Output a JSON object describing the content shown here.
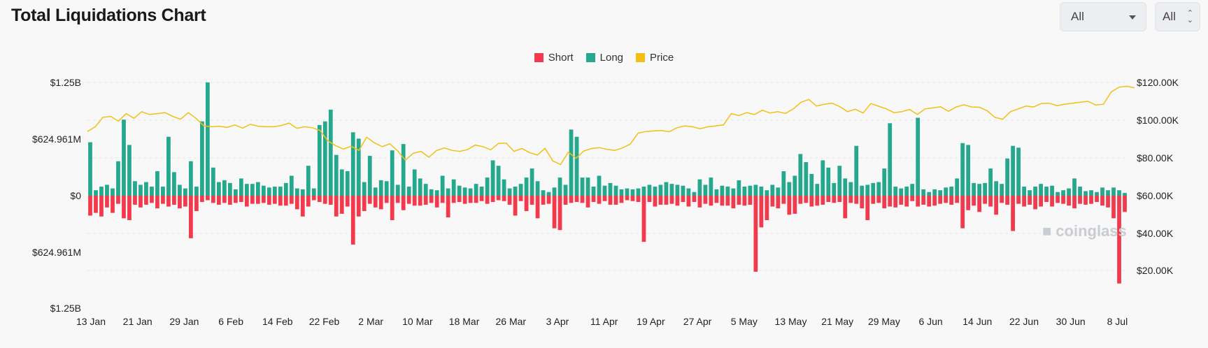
{
  "title": "Total Liquidations Chart",
  "controls": {
    "range_select": "All",
    "unit_select": "All"
  },
  "legend": [
    {
      "label": "Short",
      "color": "#f23a4c"
    },
    {
      "label": "Long",
      "color": "#26a88e"
    },
    {
      "label": "Price",
      "color": "#f2c014"
    }
  ],
  "watermark": "coinglass",
  "chart_data": {
    "type": "bar",
    "title": "Total Liquidations Chart",
    "x_tick_labels": [
      "13 Jan",
      "21 Jan",
      "29 Jan",
      "6 Feb",
      "14 Feb",
      "22 Feb",
      "2 Mar",
      "10 Mar",
      "18 Mar",
      "26 Mar",
      "3 Apr",
      "11 Apr",
      "19 Apr",
      "27 Apr",
      "5 May",
      "13 May",
      "21 May",
      "29 May",
      "6 Jun",
      "14 Jun",
      "22 Jun",
      "30 Jun",
      "8 Jul"
    ],
    "y_left_tick_labels": [
      "$1.25B",
      "$624.961M",
      "$0",
      "$624.961M",
      "$1.25B"
    ],
    "y_left_range": [
      -1.25,
      1.25
    ],
    "y_left_unit": "B USD",
    "y_right_tick_labels": [
      "$120.00K",
      "$100.00K",
      "$80.00K",
      "$60.00K",
      "$40.00K",
      "$20.00K"
    ],
    "y_right_range": [
      0,
      120000
    ],
    "grid": "horizontal dashed",
    "legend_position": "top-center",
    "series": [
      {
        "name": "Long",
        "color": "#26a88e",
        "values": [
          0.59,
          0.06,
          0.1,
          0.12,
          0.08,
          0.38,
          0.84,
          0.56,
          0.16,
          0.12,
          0.15,
          0.1,
          0.27,
          0.1,
          0.65,
          0.26,
          0.12,
          0.08,
          0.38,
          0.1,
          0.82,
          1.25,
          0.31,
          0.15,
          0.17,
          0.14,
          0.07,
          0.19,
          0.13,
          0.13,
          0.15,
          0.11,
          0.09,
          0.1,
          0.1,
          0.14,
          0.22,
          0.08,
          0.07,
          0.33,
          0.08,
          0.78,
          0.82,
          0.95,
          0.45,
          0.29,
          0.27,
          0.7,
          0.63,
          0.15,
          0.44,
          0.09,
          0.17,
          0.16,
          0.5,
          0.12,
          0.57,
          0.1,
          0.29,
          0.19,
          0.13,
          0.07,
          0.06,
          0.22,
          0.08,
          0.18,
          0.11,
          0.09,
          0.08,
          0.13,
          0.1,
          0.2,
          0.39,
          0.33,
          0.18,
          0.08,
          0.1,
          0.13,
          0.2,
          0.3,
          0.16,
          0.06,
          0.04,
          0.09,
          0.2,
          0.12,
          0.73,
          0.65,
          0.2,
          0.2,
          0.1,
          0.22,
          0.11,
          0.14,
          0.11,
          0.07,
          0.08,
          0.07,
          0.08,
          0.1,
          0.12,
          0.1,
          0.12,
          0.15,
          0.13,
          0.12,
          0.11,
          0.08,
          0.04,
          0.18,
          0.12,
          0.2,
          0.07,
          0.11,
          0.1,
          0.08,
          0.17,
          0.1,
          0.11,
          0.12,
          0.1,
          0.06,
          0.12,
          0.09,
          0.27,
          0.15,
          0.22,
          0.46,
          0.37,
          0.24,
          0.13,
          0.39,
          0.31,
          0.14,
          0.33,
          0.19,
          0.15,
          0.55,
          0.11,
          0.12,
          0.14,
          0.15,
          0.3,
          0.8,
          0.1,
          0.08,
          0.1,
          0.13,
          0.86,
          0.07,
          0.04,
          0.07,
          0.06,
          0.09,
          0.1,
          0.19,
          0.58,
          0.56,
          0.14,
          0.13,
          0.14,
          0.3,
          0.16,
          0.13,
          0.41,
          0.55,
          0.53,
          0.1,
          0.06,
          0.1,
          0.13,
          0.1,
          0.11,
          0.04,
          0.06,
          0.08,
          0.19,
          0.1,
          0.05,
          0.06,
          0.04,
          0.09,
          0.06,
          0.09,
          0.06,
          0.03
        ]
      },
      {
        "name": "Short",
        "color": "#f23a4c",
        "values": [
          -0.22,
          -0.19,
          -0.23,
          -0.13,
          -0.19,
          -0.09,
          -0.25,
          -0.27,
          -0.1,
          -0.13,
          -0.1,
          -0.08,
          -0.14,
          -0.09,
          -0.12,
          -0.1,
          -0.14,
          -0.12,
          -0.47,
          -0.17,
          -0.07,
          -0.05,
          -0.08,
          -0.1,
          -0.08,
          -0.1,
          -0.08,
          -0.07,
          -0.12,
          -0.09,
          -0.09,
          -0.08,
          -0.1,
          -0.09,
          -0.11,
          -0.11,
          -0.09,
          -0.15,
          -0.23,
          -0.12,
          -0.05,
          -0.07,
          -0.09,
          -0.1,
          -0.23,
          -0.2,
          -0.12,
          -0.54,
          -0.23,
          -0.17,
          -0.09,
          -0.13,
          -0.15,
          -0.08,
          -0.27,
          -0.08,
          -0.16,
          -0.09,
          -0.11,
          -0.11,
          -0.1,
          -0.08,
          -0.13,
          -0.08,
          -0.24,
          -0.08,
          -0.07,
          -0.09,
          -0.08,
          -0.08,
          -0.06,
          -0.09,
          -0.07,
          -0.05,
          -0.06,
          -0.1,
          -0.22,
          -0.06,
          -0.17,
          -0.1,
          -0.25,
          -0.1,
          -0.09,
          -0.36,
          -0.38,
          -0.1,
          -0.08,
          -0.07,
          -0.08,
          -0.13,
          -0.07,
          -0.09,
          -0.06,
          -0.1,
          -0.1,
          -0.08,
          -0.05,
          -0.06,
          -0.07,
          -0.51,
          -0.07,
          -0.12,
          -0.1,
          -0.1,
          -0.09,
          -0.11,
          -0.07,
          -0.12,
          -0.07,
          -0.13,
          -0.09,
          -0.11,
          -0.08,
          -0.11,
          -0.11,
          -0.14,
          -0.1,
          -0.11,
          -0.1,
          -0.84,
          -0.35,
          -0.27,
          -0.12,
          -0.14,
          -0.09,
          -0.21,
          -0.2,
          -0.09,
          -0.08,
          -0.12,
          -0.11,
          -0.1,
          -0.07,
          -0.08,
          -0.07,
          -0.25,
          -0.08,
          -0.09,
          -0.14,
          -0.27,
          -0.09,
          -0.08,
          -0.14,
          -0.12,
          -0.13,
          -0.1,
          -0.12,
          -0.06,
          -0.12,
          -0.1,
          -0.12,
          -0.11,
          -0.09,
          -0.08,
          -0.1,
          -0.08,
          -0.36,
          -0.16,
          -0.11,
          -0.18,
          -0.09,
          -0.12,
          -0.21,
          -0.08,
          -0.1,
          -0.39,
          -0.09,
          -0.12,
          -0.1,
          -0.15,
          -0.12,
          -0.07,
          -0.12,
          -0.08,
          -0.09,
          -0.11,
          -0.14,
          -0.09,
          -0.1,
          -0.09,
          -0.07,
          -0.11,
          -0.13,
          -0.25,
          -0.97,
          -0.18
        ]
      },
      {
        "name": "Price",
        "color": "#f2c014",
        "values": [
          94000,
          96500,
          101500,
          102000,
          99500,
          103500,
          101000,
          104500,
          103000,
          103500,
          104000,
          102000,
          100500,
          104000,
          101000,
          97000,
          96500,
          96800,
          96200,
          97500,
          95800,
          97800,
          96800,
          96500,
          96500,
          97200,
          98500,
          95700,
          96500,
          96000,
          94500,
          89000,
          86500,
          84700,
          86200,
          84000,
          91000,
          88000,
          86000,
          87500,
          83700,
          78800,
          82500,
          83500,
          80400,
          83900,
          85300,
          84000,
          83500,
          84400,
          86800,
          86000,
          84300,
          87700,
          87800,
          83500,
          85000,
          82800,
          81500,
          85100,
          78400,
          76500,
          83000,
          79900,
          83700,
          85000,
          85500,
          84500,
          84000,
          85300,
          87400,
          93200,
          94000,
          94300,
          94500,
          93900,
          96000,
          97000,
          96500,
          95500,
          96500,
          97000,
          97500,
          103500,
          102500,
          104000,
          103000,
          105300,
          103800,
          104500,
          103600,
          106000,
          109500,
          111000,
          107500,
          108500,
          109000,
          107200,
          104500,
          105800,
          103800,
          108800,
          107400,
          106000,
          104000,
          104500,
          105700,
          103000,
          106000,
          106500,
          107100,
          104700,
          107000,
          108200,
          107000,
          106900,
          105000,
          101500,
          100500,
          104500,
          106000,
          107500,
          107000,
          108900,
          109000,
          107700,
          108500,
          109000,
          109500,
          110000,
          108000,
          108500,
          115000,
          117500,
          118000,
          117200
        ]
      }
    ]
  }
}
